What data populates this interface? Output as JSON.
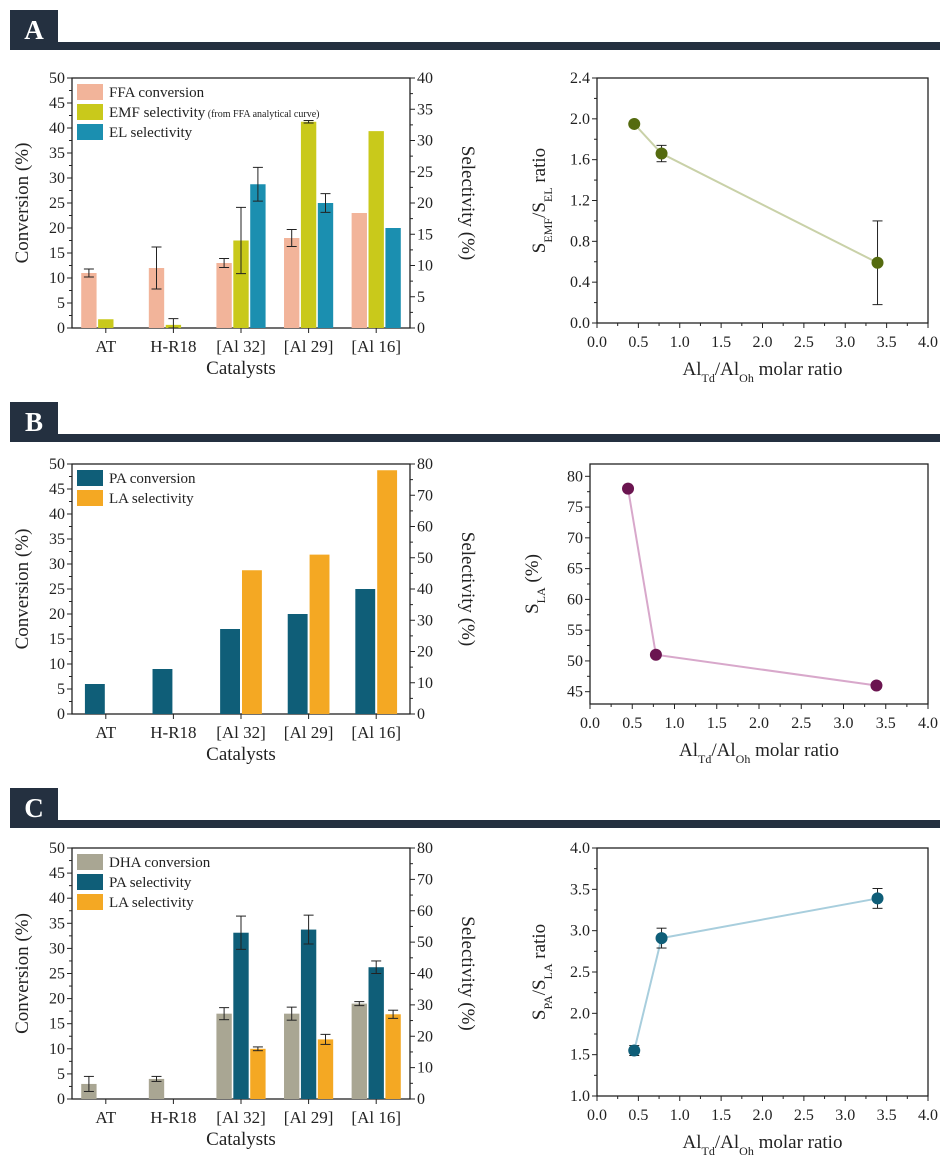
{
  "panels": [
    {
      "letter": "A"
    },
    {
      "letter": "B"
    },
    {
      "letter": "C"
    }
  ],
  "chart_data": [
    {
      "type": "bar",
      "panel": "A",
      "categories": [
        "AT",
        "H-R18",
        "[Al 32]",
        "[Al 29]",
        "[Al 16]"
      ],
      "xlabel": "Catalysts",
      "ylabel": "Conversion (%)",
      "y2label": "Selectivity (%)",
      "ylim": [
        0,
        50
      ],
      "yticks": [
        0,
        5,
        10,
        15,
        20,
        25,
        30,
        35,
        40,
        45,
        50
      ],
      "y2lim": [
        0,
        40
      ],
      "y2ticks": [
        0,
        5,
        10,
        15,
        20,
        25,
        30,
        35,
        40
      ],
      "legend_position": "top-left",
      "series": [
        {
          "name": "FFA conversion",
          "axis": "left",
          "color": "#F2B49A",
          "values": [
            11,
            12,
            13,
            18,
            23
          ],
          "errors": [
            0.8,
            4.2,
            0.9,
            1.7,
            0
          ]
        },
        {
          "name": "EMF selectivity",
          "name_note": "(from FFA analytical curve)",
          "axis": "right",
          "color": "#C9C91B",
          "values": [
            1.4,
            0.5,
            14,
            33,
            31.5
          ],
          "errors": [
            0,
            1.0,
            5.3,
            0.2,
            0
          ]
        },
        {
          "name": "EL selectivity",
          "axis": "right",
          "color": "#1B8FB0",
          "values": [
            null,
            null,
            23,
            20,
            16
          ],
          "errors": [
            0,
            0,
            2.7,
            1.5,
            0
          ]
        }
      ]
    },
    {
      "type": "line",
      "panel": "A",
      "xlabel": "Al_Td/Al_Oh molar ratio",
      "ylabel": "S_EMF/S_EL ratio",
      "xlim": [
        0.0,
        4.0
      ],
      "xticks": [
        0.0,
        0.5,
        1.0,
        1.5,
        2.0,
        2.5,
        3.0,
        3.5,
        4.0
      ],
      "ylim": [
        0.0,
        2.4
      ],
      "yticks": [
        0.0,
        0.4,
        0.8,
        1.2,
        1.6,
        2.0,
        2.4
      ],
      "yticklabels": [
        "0.0",
        "0.4",
        "0.8",
        "1.2",
        "1.6",
        "2.0",
        "2.4"
      ],
      "marker_color": "#556B0F",
      "line_color": "#C9D1A8",
      "x": [
        0.45,
        0.78,
        3.39
      ],
      "y": [
        1.95,
        1.66,
        0.59
      ],
      "errors": [
        0,
        0.08,
        0.41
      ]
    },
    {
      "type": "bar",
      "panel": "B",
      "categories": [
        "AT",
        "H-R18",
        "[Al 32]",
        "[Al 29]",
        "[Al 16]"
      ],
      "xlabel": "Catalysts",
      "ylabel": "Conversion (%)",
      "y2label": "Selectivity (%)",
      "ylim": [
        0,
        50
      ],
      "yticks": [
        0,
        5,
        10,
        15,
        20,
        25,
        30,
        35,
        40,
        45,
        50
      ],
      "y2lim": [
        0,
        80
      ],
      "y2ticks": [
        0,
        10,
        20,
        30,
        40,
        50,
        60,
        70,
        80
      ],
      "legend_position": "top-left",
      "series": [
        {
          "name": "PA conversion",
          "axis": "left",
          "color": "#0F5E78",
          "values": [
            6,
            9,
            17,
            20,
            25
          ],
          "errors": [
            0,
            0,
            0,
            0,
            0
          ]
        },
        {
          "name": "LA selectivity",
          "axis": "right",
          "color": "#F4A823",
          "values": [
            null,
            null,
            46,
            51,
            78
          ],
          "errors": [
            0,
            0,
            0,
            0,
            0
          ]
        }
      ]
    },
    {
      "type": "line",
      "panel": "B",
      "xlabel": "Al_Td/Al_Oh molar ratio",
      "ylabel": "S_LA (%)",
      "xlim": [
        0.0,
        4.0
      ],
      "xticks": [
        0.0,
        0.5,
        1.0,
        1.5,
        2.0,
        2.5,
        3.0,
        3.5,
        4.0
      ],
      "ylim": [
        43,
        82
      ],
      "yticks": [
        45,
        50,
        55,
        60,
        65,
        70,
        75,
        80
      ],
      "yticklabels": [
        "45",
        "50",
        "55",
        "60",
        "65",
        "70",
        "75",
        "80"
      ],
      "marker_color": "#6B1550",
      "line_color": "#D8A8CB",
      "x": [
        0.45,
        0.78,
        3.39
      ],
      "y": [
        78,
        51,
        46
      ],
      "errors": [
        0,
        0,
        0
      ]
    },
    {
      "type": "bar",
      "panel": "C",
      "categories": [
        "AT",
        "H-R18",
        "[Al 32]",
        "[Al 29]",
        "[Al 16]"
      ],
      "xlabel": "Catalysts",
      "ylabel": "Conversion (%)",
      "y2label": "Selectivity (%)",
      "ylim": [
        0,
        50
      ],
      "yticks": [
        0,
        5,
        10,
        15,
        20,
        25,
        30,
        35,
        40,
        45,
        50
      ],
      "y2lim": [
        0,
        80
      ],
      "y2ticks": [
        0,
        10,
        20,
        30,
        40,
        50,
        60,
        70,
        80
      ],
      "legend_position": "top-left",
      "series": [
        {
          "name": "DHA conversion",
          "axis": "left",
          "color": "#A9A693",
          "values": [
            3,
            4,
            17,
            17,
            19
          ],
          "errors": [
            1.5,
            0.5,
            1.2,
            1.3,
            0.4
          ]
        },
        {
          "name": "PA selectivity",
          "axis": "right",
          "color": "#0F5E78",
          "values": [
            null,
            null,
            53,
            54,
            42
          ],
          "errors": [
            0,
            0,
            5.3,
            4.6,
            2.0
          ]
        },
        {
          "name": "LA selectivity",
          "axis": "right",
          "color": "#F4A823",
          "values": [
            null,
            null,
            16,
            19,
            27
          ],
          "errors": [
            0,
            0,
            0.6,
            1.6,
            1.3
          ]
        }
      ]
    },
    {
      "type": "line",
      "panel": "C",
      "xlabel": "Al_Td/Al_Oh molar ratio",
      "ylabel": "S_PA/S_LA ratio",
      "xlim": [
        0.0,
        4.0
      ],
      "xticks": [
        0.0,
        0.5,
        1.0,
        1.5,
        2.0,
        2.5,
        3.0,
        3.5,
        4.0
      ],
      "ylim": [
        1.0,
        4.0
      ],
      "yticks": [
        1.0,
        1.5,
        2.0,
        2.5,
        3.0,
        3.5,
        4.0
      ],
      "yticklabels": [
        "1.0",
        "1.5",
        "2.0",
        "2.5",
        "3.0",
        "3.5",
        "4.0"
      ],
      "marker_color": "#0F5E78",
      "line_color": "#A8CEDD",
      "x": [
        0.45,
        0.78,
        3.39
      ],
      "y": [
        1.55,
        2.91,
        3.39
      ],
      "errors": [
        0.06,
        0.12,
        0.12
      ]
    }
  ]
}
